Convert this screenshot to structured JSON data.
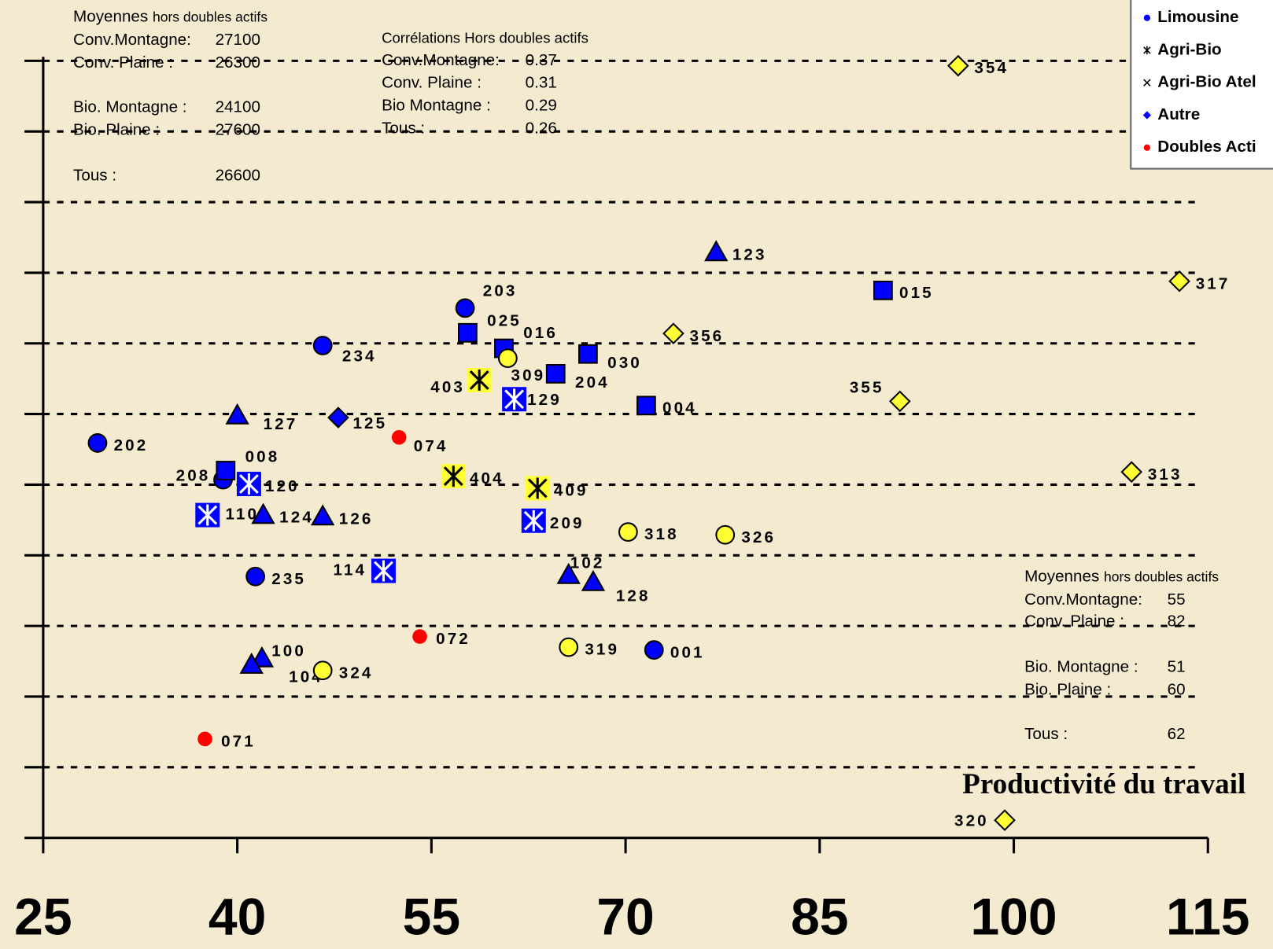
{
  "chart_data": {
    "type": "scatter",
    "x_label": "Productivité du travail",
    "xlim": [
      25,
      115
    ],
    "xticks": [
      25,
      40,
      55,
      70,
      85,
      100,
      115
    ],
    "ylim": [
      0,
      11.05
    ],
    "yticks": [
      0,
      1,
      2,
      3,
      4,
      5,
      6,
      7,
      8,
      9,
      10,
      11
    ],
    "grid": true,
    "legend": "top-right",
    "series": [
      {
        "name": "Limousine",
        "marker": "circle",
        "color": "#0000ff",
        "x": [
          29.2,
          57.6,
          46.6,
          38.9,
          41.4,
          72.2
        ],
        "values": [
          5.59,
          7.5,
          6.97,
          5.07,
          3.7,
          2.66
        ],
        "labels": [
          "202",
          "203",
          "234",
          "208",
          "235",
          "001"
        ]
      },
      {
        "name": "Agri-Bio",
        "marker": "asterisk",
        "color": "#ffff33",
        "x": [
          58.7,
          56.7,
          63.2
        ],
        "values": [
          6.48,
          5.12,
          4.95
        ],
        "labels": [
          "403",
          "404",
          "409"
        ]
      },
      {
        "name": "Agri-Bio Atel",
        "marker": "cross",
        "color": "#0000ff",
        "x": [
          61.4,
          40.9,
          37.7,
          62.9,
          51.3
        ],
        "values": [
          6.21,
          5.01,
          4.57,
          4.49,
          3.78
        ],
        "labels": [
          "129",
          "120",
          "110",
          "209",
          "114"
        ]
      },
      {
        "name": "Autre",
        "marker": "diamond",
        "color": "#0000ff",
        "x": [
          47.8
        ],
        "values": [
          5.95
        ],
        "labels": [
          "125"
        ]
      },
      {
        "name": "Doubles Acti",
        "marker": "dot",
        "color": "#ff0000",
        "x": [
          52.5,
          54.1,
          37.5
        ],
        "values": [
          5.67,
          2.85,
          1.4
        ],
        "labels": [
          "074",
          "072",
          "071"
        ]
      },
      {
        "marker": "square",
        "color": "#0000ff",
        "x": [
          89.9,
          57.8,
          60.6,
          67.1,
          64.6,
          71.6,
          39.1
        ],
        "values": [
          7.75,
          7.15,
          6.93,
          6.85,
          6.57,
          6.12,
          5.2
        ],
        "labels": [
          "015",
          "025",
          "016",
          "030",
          "204",
          "004",
          "008"
        ]
      },
      {
        "marker": "triangle",
        "color": "#0000ff",
        "x": [
          77.0,
          40.0,
          42.0,
          46.6,
          65.6,
          67.5,
          41.9,
          41.1
        ],
        "values": [
          8.29,
          5.98,
          4.57,
          4.55,
          3.72,
          3.62,
          2.54,
          2.45
        ],
        "labels": [
          "123",
          "127",
          "124",
          "126",
          "102",
          "128",
          "100",
          "104"
        ]
      },
      {
        "marker": "circle",
        "color": "#ffff33",
        "x": [
          60.9,
          70.2,
          77.7,
          65.6,
          46.6
        ],
        "values": [
          6.79,
          4.33,
          4.29,
          2.7,
          2.37
        ],
        "labels": [
          "309",
          "318",
          "326",
          "319",
          "324"
        ]
      },
      {
        "marker": "diamond",
        "color": "#ffff33",
        "x": [
          95.7,
          112.8,
          73.7,
          91.2,
          109.1,
          99.3
        ],
        "values": [
          10.93,
          7.88,
          7.14,
          6.18,
          5.18,
          0.25
        ],
        "labels": [
          "354",
          "317",
          "356",
          "355",
          "313",
          "320"
        ]
      }
    ]
  },
  "annotations": {
    "y_means": {
      "title": "Moyennes",
      "subtitle": "hors doubles actifs",
      "rows": [
        {
          "label": "Conv.Montagne:",
          "value": 27100
        },
        {
          "label": "Conv. Plaine :",
          "value": 26300
        },
        {
          "label": "Bio. Montagne :",
          "value": 24100
        },
        {
          "label": "Bio. Plaine :",
          "value": 27600
        },
        {
          "label": "Tous :",
          "value": 26600
        }
      ]
    },
    "correlations": {
      "title": "Corrélations Hors doubles actifs",
      "rows": [
        {
          "label": "Conv.Montagne:",
          "value": 0.37
        },
        {
          "label": "Conv. Plaine :",
          "value": 0.31
        },
        {
          "label": "Bio Montagne :",
          "value": 0.29
        },
        {
          "label": "Tous :",
          "value": 0.26
        }
      ]
    },
    "x_means": {
      "title": "Moyennes",
      "subtitle": "hors doubles actifs",
      "rows": [
        {
          "label": "Conv.Montagne:",
          "value": 55
        },
        {
          "label": "Conv. Plaine :",
          "value": 82
        },
        {
          "label": "Bio. Montagne :",
          "value": 51
        },
        {
          "label": "Bio. Plaine :",
          "value": 60
        },
        {
          "label": "Tous :",
          "value": 62
        }
      ]
    }
  }
}
